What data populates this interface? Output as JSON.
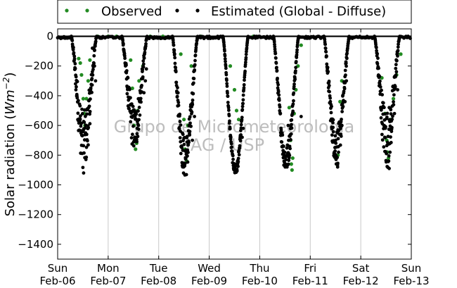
{
  "chart_data": {
    "type": "scatter",
    "ylabel": "Solar radiation (Wm^-2)",
    "ylabel_parts": {
      "prefix": "Solar radiation (",
      "unit": "Wm",
      "exponent": "−2",
      "suffix": ")"
    },
    "ylim": [
      -1500,
      50
    ],
    "yticks": [
      0,
      -200,
      -400,
      -600,
      -800,
      -1000,
      -1200,
      -1400
    ],
    "ytick_labels": [
      "0",
      "−200",
      "−400",
      "−600",
      "−800",
      "−1000",
      "−1200",
      "−1400"
    ],
    "xlim": [
      "2011-02-06",
      "2011-02-13"
    ],
    "xticks": [
      {
        "day": "Sun",
        "date": "Feb-06"
      },
      {
        "day": "Mon",
        "date": "Feb-07"
      },
      {
        "day": "Tue",
        "date": "Feb-08"
      },
      {
        "day": "Wed",
        "date": "Feb-09"
      },
      {
        "day": "Thu",
        "date": "Feb-10"
      },
      {
        "day": "Fri",
        "date": "Feb-11"
      },
      {
        "day": "Sat",
        "date": "Feb-12"
      },
      {
        "day": "Sun",
        "date": "Feb-13"
      }
    ],
    "grid": "vertical",
    "legend_position": "top",
    "colors": {
      "observed": "#228b22",
      "estimated": "#000000",
      "grid": "#c8c8c8",
      "zero_line": "#000000"
    },
    "watermark": [
      "Grupo de Micrometeorologia",
      "IAG / USP"
    ],
    "series": [
      {
        "name": "Observed",
        "color": "#228b22",
        "points": [
          [
            "02-06 10:00",
            -150
          ],
          [
            "02-06 10:45",
            -180
          ],
          [
            "02-06 11:20",
            -260
          ],
          [
            "02-06 12:10",
            -420
          ],
          [
            "02-06 12:40",
            -520
          ],
          [
            "02-06 13:00",
            -600
          ],
          [
            "02-06 13:40",
            -420
          ],
          [
            "02-06 14:30",
            -300
          ],
          [
            "02-06 15:20",
            -160
          ],
          [
            "02-06 19:00",
            0
          ],
          [
            "02-07 00:00",
            0
          ],
          [
            "02-07 04:00",
            0
          ],
          [
            "02-07 10:40",
            -160
          ],
          [
            "02-07 11:30",
            -350
          ],
          [
            "02-07 12:15",
            -600
          ],
          [
            "02-07 12:40",
            -680
          ],
          [
            "02-07 13:00",
            -760
          ],
          [
            "02-07 13:30",
            -720
          ],
          [
            "02-07 14:00",
            -500
          ],
          [
            "02-07 14:40",
            -300
          ],
          [
            "02-07 16:30",
            -200
          ],
          [
            "02-07 20:00",
            0
          ],
          [
            "02-08 02:00",
            0
          ],
          [
            "02-08 10:30",
            -120
          ],
          [
            "02-08 12:00",
            -560
          ],
          [
            "02-08 12:30",
            -760
          ],
          [
            "02-08 12:50",
            -820
          ],
          [
            "02-08 13:20",
            -840
          ],
          [
            "02-08 13:50",
            -600
          ],
          [
            "02-08 15:30",
            -200
          ],
          [
            "02-08 20:00",
            0
          ],
          [
            "02-09 10:00",
            -200
          ],
          [
            "02-09 12:00",
            -360
          ],
          [
            "02-09 13:00",
            -500
          ],
          [
            "02-09 14:00",
            -560
          ],
          [
            "02-09 21:00",
            0
          ],
          [
            "02-10 14:00",
            -480
          ],
          [
            "02-10 14:40",
            -700
          ],
          [
            "02-10 15:00",
            -860
          ],
          [
            "02-10 15:20",
            -900
          ],
          [
            "02-10 15:40",
            -820
          ],
          [
            "02-10 16:20",
            -520
          ],
          [
            "02-10 17:10",
            -360
          ],
          [
            "02-10 18:10",
            -200
          ],
          [
            "02-10 19:40",
            -60
          ],
          [
            "02-11 12:00",
            -820
          ],
          [
            "02-11 12:30",
            -860
          ],
          [
            "02-11 13:10",
            -800
          ],
          [
            "02-11 14:10",
            -440
          ],
          [
            "02-11 15:00",
            -300
          ],
          [
            "02-12 10:00",
            -280
          ],
          [
            "02-12 11:30",
            -520
          ],
          [
            "02-12 12:20",
            -700
          ],
          [
            "02-12 12:40",
            -780
          ],
          [
            "02-12 13:10",
            -820
          ],
          [
            "02-12 14:00",
            -560
          ],
          [
            "02-12 15:30",
            -420
          ],
          [
            "02-12 17:00",
            -260
          ],
          [
            "02-12 19:00",
            -120
          ]
        ]
      },
      {
        "name": "Estimated (Global - Diffuse)",
        "color": "#000000",
        "days": [
          {
            "date": "02-06",
            "peak": -900,
            "noise": 0.45,
            "extra": [
              [
                "02-06 12:20",
                -920
              ],
              [
                "02-06 16:30",
                -80
              ],
              [
                "02-06 17:30",
                -200
              ],
              [
                "02-06 18:00",
                -300
              ]
            ]
          },
          {
            "date": "02-07",
            "peak": -780,
            "noise": 0.4,
            "extra": [
              [
                "02-07 17:00",
                -380
              ],
              [
                "02-07 17:40",
                -300
              ],
              [
                "02-07 18:10",
                -220
              ]
            ]
          },
          {
            "date": "02-08",
            "peak": -960,
            "noise": 0.3,
            "extra": [
              [
                "02-08 16:00",
                -700
              ],
              [
                "02-08 17:00",
                -540
              ]
            ]
          },
          {
            "date": "02-09",
            "peak": -940,
            "noise": 0.08,
            "extra": [
              [
                "02-09 15:40",
                -680
              ],
              [
                "02-09 16:10",
                -620
              ]
            ]
          },
          {
            "date": "02-10",
            "peak": -920,
            "noise": 0.2,
            "extra": [
              [
                "02-10 13:30",
                -600
              ],
              [
                "02-10 19:40",
                -540
              ]
            ]
          },
          {
            "date": "02-11",
            "peak": -880,
            "noise": 0.3,
            "extra": [
              [
                "02-11 13:00",
                -880
              ],
              [
                "02-11 16:30",
                -440
              ],
              [
                "02-11 17:10",
                -300
              ]
            ]
          },
          {
            "date": "02-12",
            "peak": -890,
            "noise": 0.45,
            "extra": [
              [
                "02-12 13:30",
                -890
              ],
              [
                "02-12 16:00",
                -520
              ],
              [
                "02-12 17:30",
                -360
              ]
            ]
          }
        ]
      }
    ]
  }
}
